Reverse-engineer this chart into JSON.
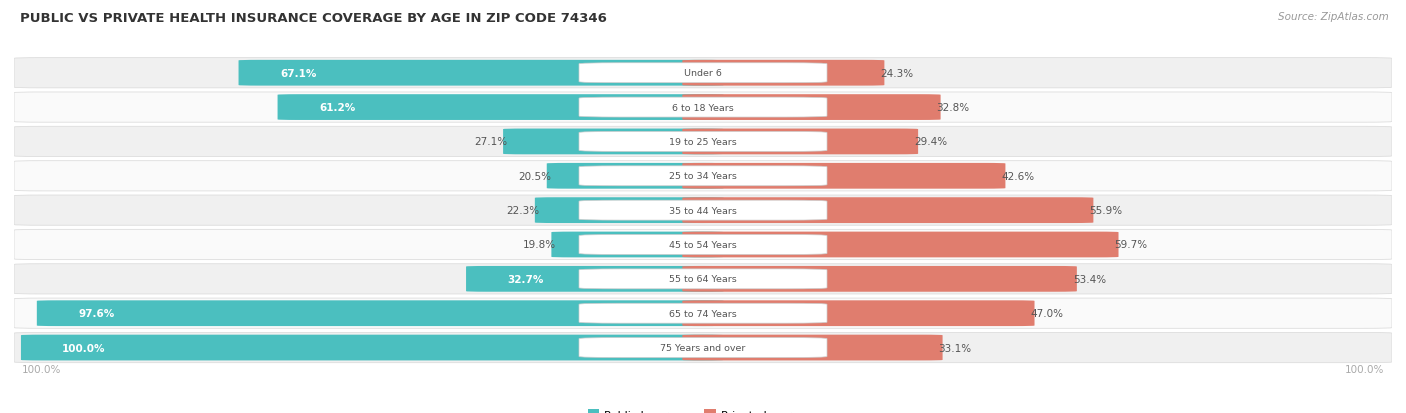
{
  "title": "PUBLIC VS PRIVATE HEALTH INSURANCE COVERAGE BY AGE IN ZIP CODE 74346",
  "source": "Source: ZipAtlas.com",
  "categories": [
    "Under 6",
    "6 to 18 Years",
    "19 to 25 Years",
    "25 to 34 Years",
    "35 to 44 Years",
    "45 to 54 Years",
    "55 to 64 Years",
    "65 to 74 Years",
    "75 Years and over"
  ],
  "public_values": [
    67.1,
    61.2,
    27.1,
    20.5,
    22.3,
    19.8,
    32.7,
    97.6,
    100.0
  ],
  "private_values": [
    24.3,
    32.8,
    29.4,
    42.6,
    55.9,
    59.7,
    53.4,
    47.0,
    33.1
  ],
  "public_color": "#4BBFBF",
  "private_color": "#E07D6E",
  "row_bg_even": "#F0F0F0",
  "row_bg_odd": "#FAFAFA",
  "row_border": "#DDDDDD",
  "label_bg_color": "#FFFFFF",
  "center_label_color": "#555555",
  "title_color": "#333333",
  "source_color": "#999999",
  "axis_label_color": "#AAAAAA",
  "legend_public_color": "#4BBFBF",
  "legend_private_color": "#E07D6E",
  "max_value": 100.0,
  "figsize": [
    14.06,
    4.14
  ],
  "dpi": 100,
  "pub_white_threshold": 30.0
}
